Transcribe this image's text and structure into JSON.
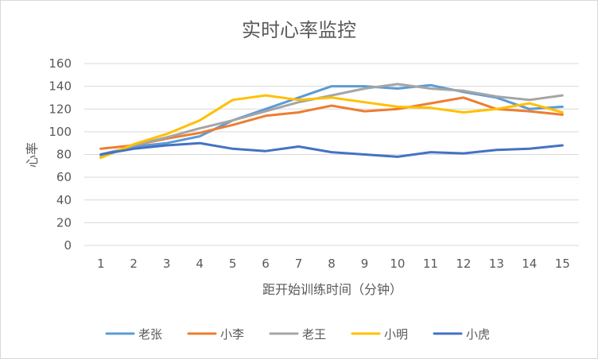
{
  "chart_data": {
    "type": "line",
    "title": "实时心率监控",
    "xlabel": "距开始训练时间（分钟）",
    "ylabel": "心率",
    "x": [
      1,
      2,
      3,
      4,
      5,
      6,
      7,
      8,
      9,
      10,
      11,
      12,
      13,
      14,
      15
    ],
    "ylim": [
      0,
      160
    ],
    "yticks": [
      0,
      20,
      40,
      60,
      80,
      100,
      120,
      140,
      160
    ],
    "grid": "horizontal",
    "legend": "bottom",
    "series": [
      {
        "name": "老张",
        "color": "#5B9BD5",
        "values": [
          80,
          87,
          90,
          96,
          110,
          120,
          130,
          140,
          140,
          138,
          141,
          135,
          130,
          120,
          122
        ]
      },
      {
        "name": "小李",
        "color": "#ED7D31",
        "values": [
          85,
          88,
          94,
          99,
          106,
          114,
          117,
          123,
          118,
          120,
          125,
          130,
          120,
          118,
          115
        ]
      },
      {
        "name": "老王",
        "color": "#A5A5A5",
        "values": [
          78,
          88,
          95,
          103,
          110,
          118,
          126,
          132,
          138,
          142,
          138,
          136,
          131,
          128,
          132
        ]
      },
      {
        "name": "小明",
        "color": "#FFC000",
        "values": [
          77,
          89,
          98,
          110,
          128,
          132,
          128,
          130,
          126,
          122,
          121,
          117,
          120,
          125,
          117
        ]
      },
      {
        "name": "小虎",
        "color": "#4472C4",
        "values": [
          80,
          85,
          88,
          90,
          85,
          83,
          87,
          82,
          80,
          78,
          82,
          81,
          84,
          85,
          88
        ]
      }
    ]
  }
}
